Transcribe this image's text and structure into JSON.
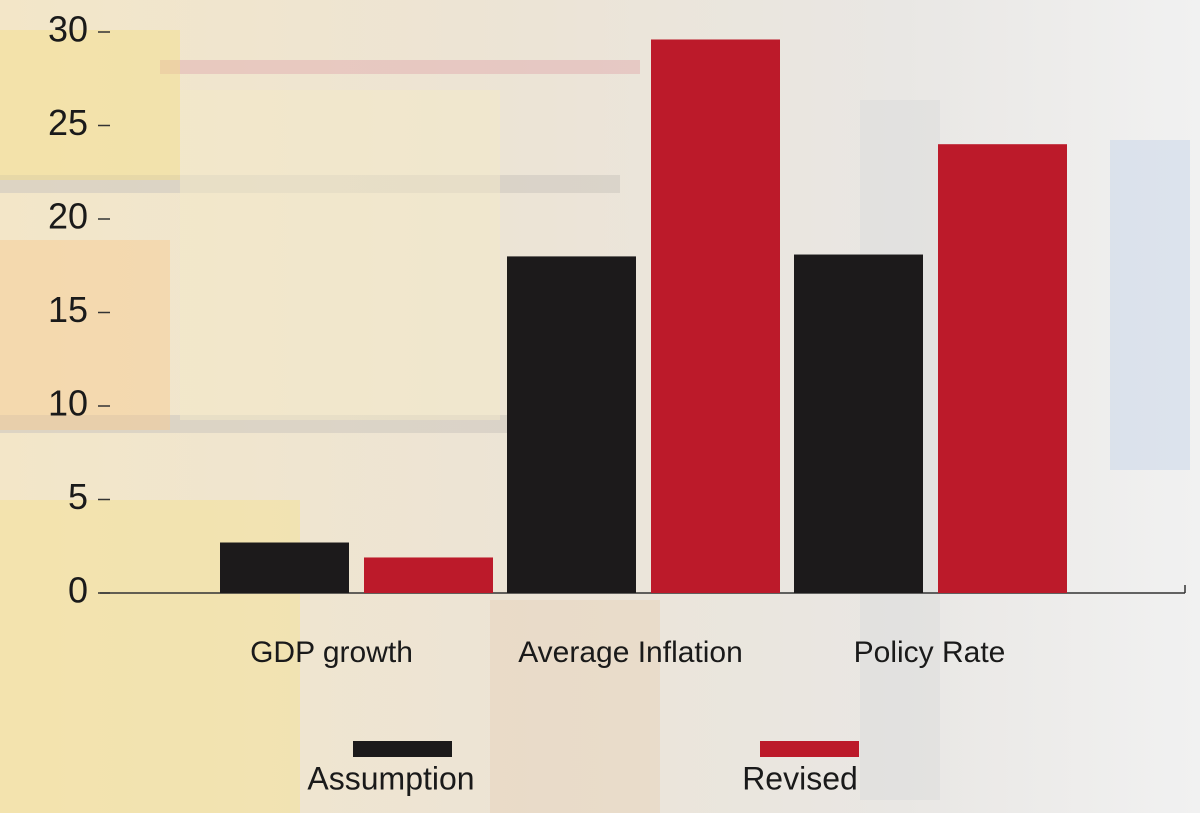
{
  "chart_data": {
    "type": "bar",
    "categories": [
      "GDP growth",
      "Average Inflation",
      "Policy Rate"
    ],
    "series": [
      {
        "name": "Assumption",
        "color": "#1c1a1b",
        "values": [
          2.7,
          18,
          18.1
        ]
      },
      {
        "name": "Revised",
        "color": "#bc1a2a",
        "values": [
          1.9,
          29.6,
          24
        ]
      }
    ],
    "ylim": [
      0,
      30
    ],
    "yticks": [
      0,
      5,
      10,
      15,
      20,
      25,
      30
    ]
  }
}
